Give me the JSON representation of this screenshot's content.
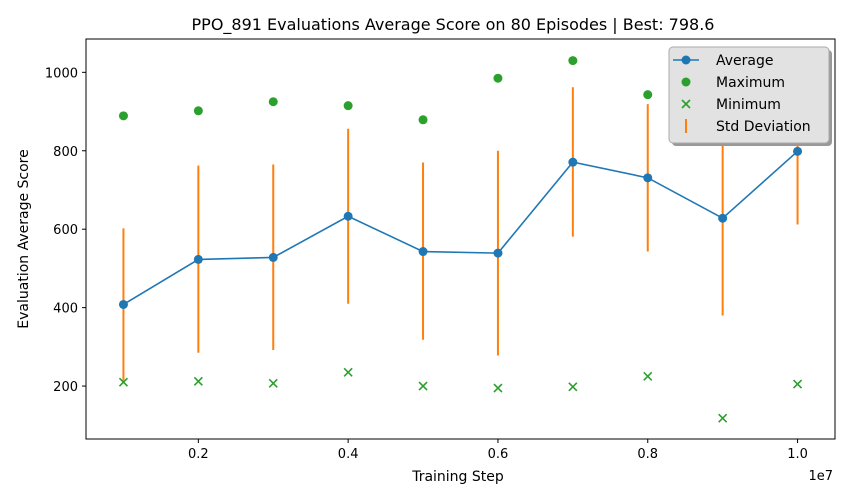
{
  "chart_data": {
    "type": "line",
    "title": "PPO_891 Evaluations Average Score on 80 Episodes | Best: 798.6",
    "xlabel": "Training Step",
    "ylabel": "Evaluation Average Score",
    "x_offset_label": "1e7",
    "x": [
      0.1,
      0.2,
      0.3,
      0.4,
      0.5,
      0.6,
      0.7,
      0.8,
      0.9,
      1.0
    ],
    "xlim": [
      0.05,
      1.05
    ],
    "ylim": [
      65,
      1085
    ],
    "xticks": [
      0.2,
      0.4,
      0.6,
      0.8,
      1.0
    ],
    "xtick_labels": [
      "0.2",
      "0.4",
      "0.6",
      "0.8",
      "1.0"
    ],
    "yticks": [
      200,
      400,
      600,
      800,
      1000
    ],
    "ytick_labels": [
      "200",
      "400",
      "600",
      "800",
      "1000"
    ],
    "grid": false,
    "legend_position": "top-right",
    "series": [
      {
        "name": "Average",
        "kind": "line",
        "color": "#1f77b4",
        "values": [
          408,
          523,
          528,
          633,
          543,
          539,
          771,
          731,
          628,
          798.6
        ]
      },
      {
        "name": "Maximum",
        "kind": "scatter-dot",
        "color": "#2ca02c",
        "values": [
          889,
          902,
          925,
          915,
          879,
          985,
          1030,
          943,
          947,
          1005
        ]
      },
      {
        "name": "Minimum",
        "kind": "scatter-x",
        "color": "#2ca02c",
        "values": [
          210,
          212,
          207,
          235,
          200,
          195,
          198,
          225,
          118,
          205
        ]
      },
      {
        "name": "Std Deviation",
        "kind": "errorbar",
        "color": "#ff7f0e",
        "low": [
          214,
          285,
          292,
          410,
          318,
          278,
          581,
          543,
          380,
          612
        ],
        "high": [
          602,
          762,
          765,
          856,
          770,
          800,
          962,
          919,
          876,
          985
        ]
      }
    ]
  }
}
